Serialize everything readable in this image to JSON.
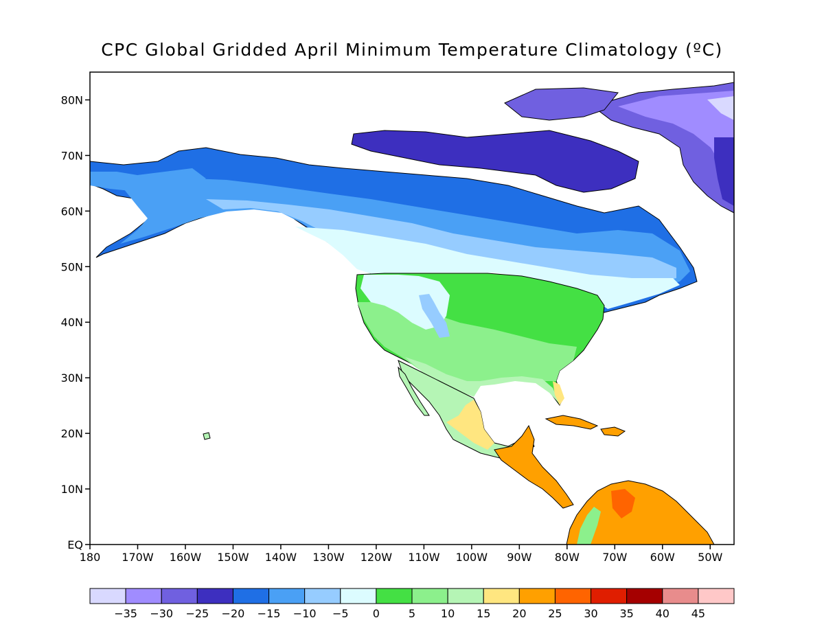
{
  "title": "CPC Global Gridded April Minimum Temperature Climatology (ºC)",
  "map": {
    "lon_range": [
      180,
      -45
    ],
    "lat_range": [
      0,
      85
    ],
    "lat_ticks": [
      {
        "value": 80,
        "label": "80N"
      },
      {
        "value": 70,
        "label": "70N"
      },
      {
        "value": 60,
        "label": "60N"
      },
      {
        "value": 50,
        "label": "50N"
      },
      {
        "value": 40,
        "label": "40N"
      },
      {
        "value": 30,
        "label": "30N"
      },
      {
        "value": 20,
        "label": "20N"
      },
      {
        "value": 10,
        "label": "10N"
      },
      {
        "value": 0,
        "label": "EQ"
      }
    ],
    "lon_ticks": [
      {
        "value": 180,
        "label": "180"
      },
      {
        "value": -170,
        "label": "170W"
      },
      {
        "value": -160,
        "label": "160W"
      },
      {
        "value": -150,
        "label": "150W"
      },
      {
        "value": -140,
        "label": "140W"
      },
      {
        "value": -130,
        "label": "130W"
      },
      {
        "value": -120,
        "label": "120W"
      },
      {
        "value": -110,
        "label": "110W"
      },
      {
        "value": -100,
        "label": "100W"
      },
      {
        "value": -90,
        "label": "90W"
      },
      {
        "value": -80,
        "label": "80W"
      },
      {
        "value": -70,
        "label": "70W"
      },
      {
        "value": -60,
        "label": "60W"
      },
      {
        "value": -50,
        "label": "50W"
      }
    ]
  },
  "colorbar": {
    "colors": [
      "#d9d9ff",
      "#a08cff",
      "#7060e0",
      "#3d2fbf",
      "#1f6fe5",
      "#4aa0f5",
      "#96ccff",
      "#dcfcff",
      "#44e044",
      "#8cf08c",
      "#b5f5b5",
      "#ffe680",
      "#ffa000",
      "#ff6400",
      "#e01e00",
      "#a50000",
      "#e88c8c",
      "#ffc8c8"
    ],
    "labels": [
      "−35",
      "−30",
      "−25",
      "−20",
      "−15",
      "−10",
      "−5",
      "0",
      "5",
      "10",
      "15",
      "20",
      "25",
      "30",
      "35",
      "40",
      "45"
    ]
  }
}
